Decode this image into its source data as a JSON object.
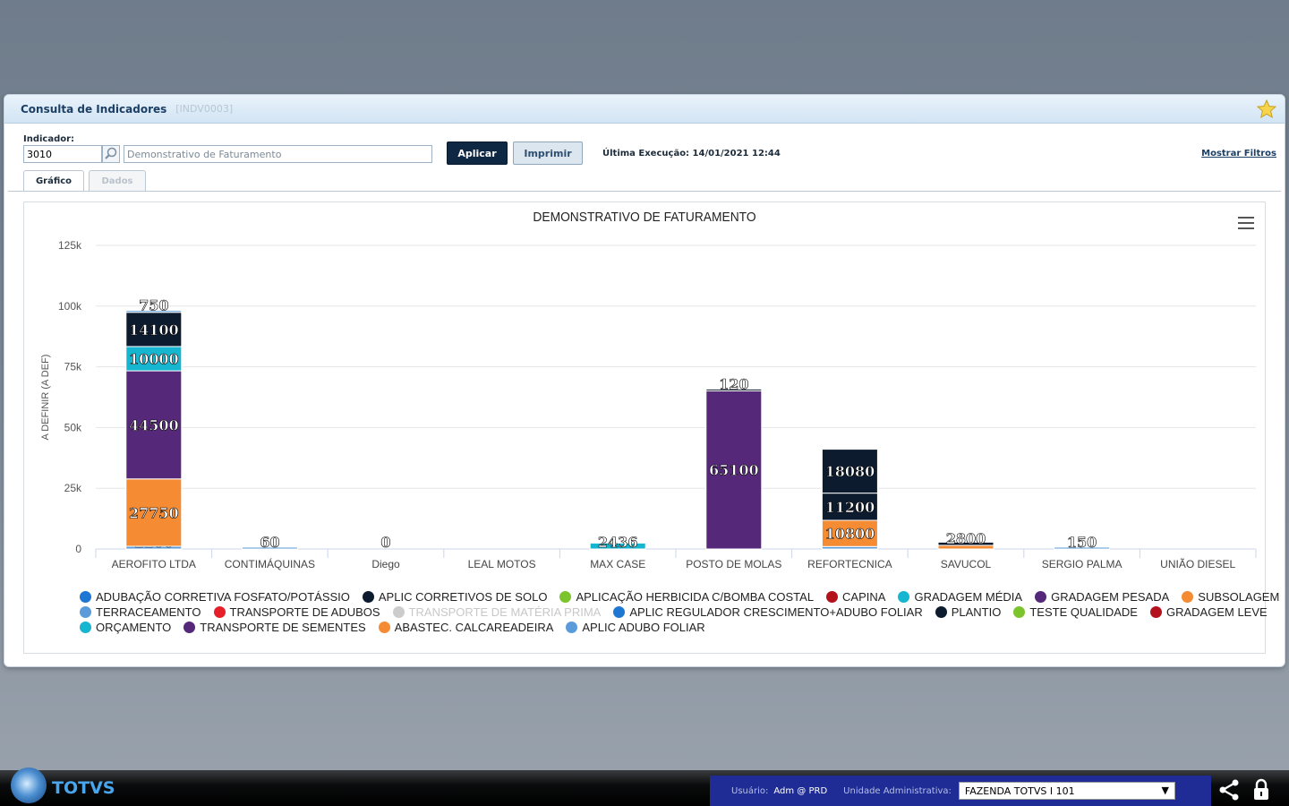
{
  "window": {
    "title": "Consulta de Indicadores",
    "code": "[INDV0003]",
    "star_icon": "star-icon"
  },
  "form": {
    "indicator_label": "Indicador:",
    "indicator_code": "3010",
    "indicator_description": "Demonstrativo de Faturamento",
    "apply_label": "Aplicar",
    "print_label": "Imprimir",
    "last_execution": "Última Execução: 14/01/2021 12:44",
    "show_filters": "Mostrar Filtros"
  },
  "tabs": [
    {
      "label": "Gráfico",
      "active": true
    },
    {
      "label": "Dados",
      "active": false
    }
  ],
  "chart_data": {
    "type": "bar",
    "stacked": true,
    "title": "DEMONSTRATIVO DE FATURAMENTO",
    "ylabel": "A DEFINIR (A DEF)",
    "xlabel": "",
    "ylim": [
      0,
      125000
    ],
    "yticks": [
      0,
      25000,
      50000,
      75000,
      100000,
      125000
    ],
    "ytick_labels": [
      "0",
      "25k",
      "50k",
      "75k",
      "100k",
      "125k"
    ],
    "grid": true,
    "legend_position": "bottom",
    "categories": [
      "AEROFITO LTDA",
      "CONTIMÁQUINAS",
      "Diego",
      "LEAL MOTOS",
      "MAX CASE",
      "POSTO DE MOLAS",
      "REFORTECNICA",
      "SAVUCOL",
      "SERGIO PALMA",
      "UNIÃO DIESEL"
    ],
    "segments": [
      {
        "category": "AEROFITO LTDA",
        "series": "TERRACEAMENTO",
        "value": 1100,
        "label": "1100"
      },
      {
        "category": "AEROFITO LTDA",
        "series": "SUBSOLAGEM",
        "value": 27750,
        "label": "27750"
      },
      {
        "category": "AEROFITO LTDA",
        "series": "GRADAGEM PESADA",
        "value": 44500,
        "label": "44500"
      },
      {
        "category": "AEROFITO LTDA",
        "series": "GRADAGEM MÉDIA",
        "value": 10000,
        "label": "10000"
      },
      {
        "category": "AEROFITO LTDA",
        "series": "APLIC CORRETIVOS DE SOLO",
        "value": 14100,
        "label": "14100"
      },
      {
        "category": "AEROFITO LTDA",
        "series": "TERRACEAMENTO",
        "value": 750,
        "label": "750"
      },
      {
        "category": "CONTIMÁQUINAS",
        "series": "TERRACEAMENTO",
        "value": 60,
        "label": "60"
      },
      {
        "category": "Diego",
        "series": "TERRACEAMENTO",
        "value": 0,
        "label": "0"
      },
      {
        "category": "MAX CASE",
        "series": "GRADAGEM MÉDIA",
        "value": 2436,
        "label": "2436"
      },
      {
        "category": "POSTO DE MOLAS",
        "series": "GRADAGEM PESADA",
        "value": 65100,
        "label": "65100"
      },
      {
        "category": "POSTO DE MOLAS",
        "series": "APLIC CORRETIVOS DE SOLO",
        "value": 120,
        "label": "120"
      },
      {
        "category": "REFORTECNICA",
        "series": "TERRACEAMENTO",
        "value": 1000,
        "label": ""
      },
      {
        "category": "REFORTECNICA",
        "series": "SUBSOLAGEM",
        "value": 10800,
        "label": "10800"
      },
      {
        "category": "REFORTECNICA",
        "series": "APLIC CORRETIVOS DE SOLO",
        "value": 11200,
        "label": "11200"
      },
      {
        "category": "REFORTECNICA",
        "series": "PLANTIO",
        "value": 18080,
        "label": "18080"
      },
      {
        "category": "SAVUCOL",
        "series": "SUBSOLAGEM",
        "value": 1500,
        "label": ""
      },
      {
        "category": "SAVUCOL",
        "series": "APLIC CORRETIVOS DE SOLO",
        "value": 1300,
        "label": "2800"
      },
      {
        "category": "SERGIO PALMA",
        "series": "TERRACEAMENTO",
        "value": 150,
        "label": "150"
      }
    ],
    "legend": [
      {
        "name": "ADUBAÇÃO CORRETIVA FOSFATO/POTÁSSIO",
        "color": "#1f77d4"
      },
      {
        "name": "APLIC CORRETIVOS DE SOLO",
        "color": "#0d1b2e"
      },
      {
        "name": "APLICAÇÃO HERBICIDA C/BOMBA COSTAL",
        "color": "#7cc42b"
      },
      {
        "name": "CAPINA",
        "color": "#b3121c"
      },
      {
        "name": "GRADAGEM MÉDIA",
        "color": "#16b5d0"
      },
      {
        "name": "GRADAGEM PESADA",
        "color": "#55287a"
      },
      {
        "name": "SUBSOLAGEM",
        "color": "#f58b33"
      },
      {
        "name": "TERRACEAMENTO",
        "color": "#5b9bd9"
      },
      {
        "name": "TRANSPORTE DE ADUBOS",
        "color": "#e6202a"
      },
      {
        "name": "TRANSPORTE DE MATÉRIA PRIMA",
        "color": "#cccccc",
        "hidden": true
      },
      {
        "name": "APLIC REGULADOR CRESCIMENTO+ADUBO FOLIAR",
        "color": "#1f77d4"
      },
      {
        "name": "PLANTIO",
        "color": "#0d1b2e"
      },
      {
        "name": "TESTE QUALIDADE",
        "color": "#7cc42b"
      },
      {
        "name": "GRADAGEM LEVE",
        "color": "#b3121c"
      },
      {
        "name": "ORÇAMENTO",
        "color": "#16b5d0"
      },
      {
        "name": "TRANSPORTE DE SEMENTES",
        "color": "#55287a"
      },
      {
        "name": "ABASTEC. CALCAREADEIRA",
        "color": "#f58b33"
      },
      {
        "name": "APLIC ADUBO FOLIAR",
        "color": "#5b9bd9"
      }
    ]
  },
  "footer": {
    "brand": "TOTVS",
    "user_label": "Usuário:",
    "user_value": "Adm @ PRD",
    "unit_label": "Unidade Administrativa:",
    "unit_value": "FAZENDA TOTVS I 101"
  }
}
